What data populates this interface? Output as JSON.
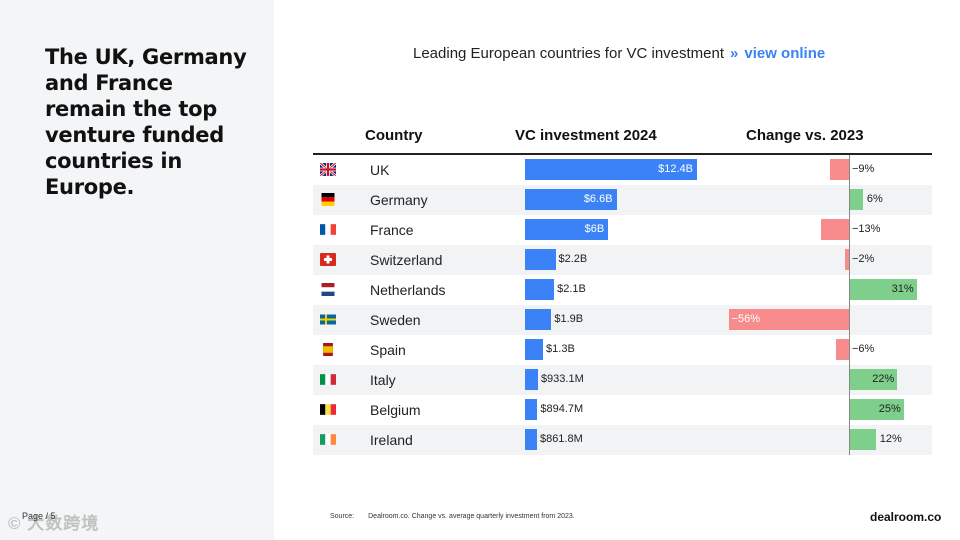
{
  "headline": "The UK, Germany and France remain the top venture funded countries in Europe.",
  "page_label": "Page / 5",
  "watermark": "© 大数跨境",
  "chart_title": "Leading European countries for VC investment",
  "chart_title_sep": "»",
  "chart_link": "view online",
  "source_label": "Source:",
  "source_text": "Dealroom.co. Change vs. average quarterly investment from 2023.",
  "logo": "dealroom.co",
  "colors": {
    "investment_bar": "#3b82f6",
    "positive": "#7ecf8c",
    "negative": "#f88c8c",
    "link": "#3b82f6"
  },
  "chart_data": {
    "type": "table",
    "title": "Leading European countries for VC investment",
    "columns": [
      "Country",
      "VC investment 2024",
      "Change vs. 2023"
    ],
    "rows": [
      {
        "country": "UK",
        "flag": "uk-flag-icon",
        "investment": 12.4,
        "investment_label": "$12.4B",
        "change": -9,
        "change_label": "−9%"
      },
      {
        "country": "Germany",
        "flag": "germany-flag-icon",
        "investment": 6.6,
        "investment_label": "$6.6B",
        "change": 6,
        "change_label": "6%"
      },
      {
        "country": "France",
        "flag": "france-flag-icon",
        "investment": 6.0,
        "investment_label": "$6B",
        "change": -13,
        "change_label": "−13%"
      },
      {
        "country": "Switzerland",
        "flag": "switzerland-flag-icon",
        "investment": 2.2,
        "investment_label": "$2.2B",
        "change": -2,
        "change_label": "−2%"
      },
      {
        "country": "Netherlands",
        "flag": "netherlands-flag-icon",
        "investment": 2.1,
        "investment_label": "$2.1B",
        "change": 31,
        "change_label": "31%"
      },
      {
        "country": "Sweden",
        "flag": "sweden-flag-icon",
        "investment": 1.9,
        "investment_label": "$1.9B",
        "change": -56,
        "change_label": "−56%"
      },
      {
        "country": "Spain",
        "flag": "spain-flag-icon",
        "investment": 1.3,
        "investment_label": "$1.3B",
        "change": -6,
        "change_label": "−6%"
      },
      {
        "country": "Italy",
        "flag": "italy-flag-icon",
        "investment": 0.9331,
        "investment_label": "$933.1M",
        "change": 22,
        "change_label": "22%"
      },
      {
        "country": "Belgium",
        "flag": "belgium-flag-icon",
        "investment": 0.8947,
        "investment_label": "$894.7M",
        "change": 25,
        "change_label": "25%"
      },
      {
        "country": "Ireland",
        "flag": "ireland-flag-icon",
        "investment": 0.8618,
        "investment_label": "$861.8M",
        "change": 12,
        "change_label": "12%"
      }
    ]
  }
}
